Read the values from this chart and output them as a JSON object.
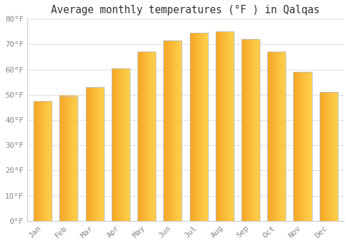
{
  "title": "Average monthly temperatures (°F ) in Qalqas",
  "months": [
    "Jan",
    "Feb",
    "Mar",
    "Apr",
    "May",
    "Jun",
    "Jul",
    "Aug",
    "Sep",
    "Oct",
    "Nov",
    "Dec"
  ],
  "values": [
    47.5,
    49.5,
    53.0,
    60.5,
    67.0,
    71.5,
    74.5,
    75.0,
    72.0,
    67.0,
    59.0,
    51.0
  ],
  "bar_color_left": "#F5A623",
  "bar_color_right": "#FFD050",
  "bar_edge_color": "#BBBBBB",
  "background_color": "#FFFFFF",
  "grid_color": "#DDDDDD",
  "text_color": "#888888",
  "title_color": "#333333",
  "ylim": [
    0,
    80
  ],
  "yticks": [
    0,
    10,
    20,
    30,
    40,
    50,
    60,
    70,
    80
  ],
  "ytick_labels": [
    "0°F",
    "10°F",
    "20°F",
    "30°F",
    "40°F",
    "50°F",
    "60°F",
    "70°F",
    "80°F"
  ],
  "title_fontsize": 10.5,
  "tick_fontsize": 8,
  "bar_width": 0.7,
  "n_gradient_steps": 50
}
